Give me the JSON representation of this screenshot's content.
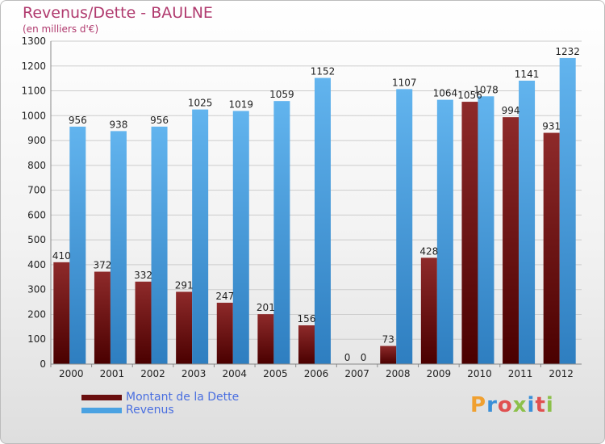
{
  "title": "Revenus/Dette - BAULNE",
  "subtitle": "(en milliers d'€)",
  "logo": {
    "letters": [
      "P",
      "r",
      "o",
      "x",
      "i",
      "t",
      "i"
    ],
    "colors": [
      "#f0a030",
      "#3a8fd8",
      "#e05050",
      "#8cc04a",
      "#3a8fd8",
      "#e05050",
      "#8cc04a"
    ]
  },
  "colors": {
    "debt": "#7a1a1a",
    "debt_dark": "#4a0000",
    "revenue": "#5aaeea",
    "revenue_dark": "#2a78b8",
    "grid": "#cccccc",
    "axis_text": "#222222"
  },
  "chart_data": {
    "type": "bar",
    "categories": [
      "2000",
      "2001",
      "2002",
      "2003",
      "2004",
      "2005",
      "2006",
      "2007",
      "2008",
      "2009",
      "2010",
      "2011",
      "2012"
    ],
    "series": [
      {
        "name": "Montant de la Dette",
        "values": [
          410,
          372,
          332,
          291,
          247,
          201,
          156,
          0,
          73,
          428,
          1056,
          994,
          931
        ]
      },
      {
        "name": "Revenus",
        "values": [
          956,
          938,
          956,
          1025,
          1019,
          1059,
          1152,
          0,
          1107,
          1064,
          1078,
          1141,
          1232
        ]
      }
    ],
    "ylim": [
      0,
      1300
    ],
    "yticks": [
      0,
      100,
      200,
      300,
      400,
      500,
      600,
      700,
      800,
      900,
      1000,
      1100,
      1200,
      1300
    ],
    "grid": true,
    "legend": "bottom-left"
  }
}
